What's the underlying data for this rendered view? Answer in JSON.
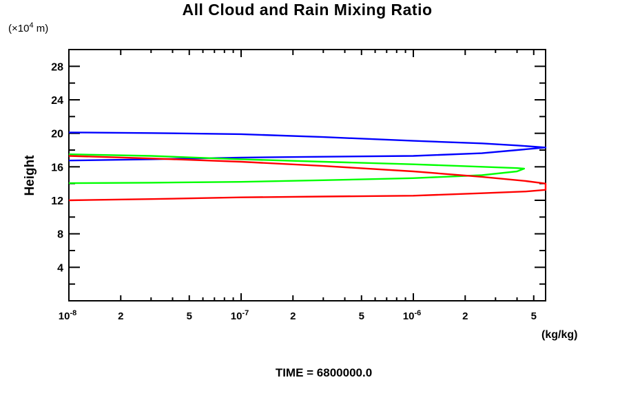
{
  "header": {
    "title": "All Cloud and Rain Mixing Ratio"
  },
  "footer": {
    "time_label": "TIME = 6800000.0"
  },
  "chart_data": {
    "type": "line",
    "title": "All Cloud and Rain Mixing Ratio",
    "xlabel_unit": "(kg/kg)",
    "ylabel": "Height",
    "y_unit_parts": {
      "pre": "(×10",
      "exp": "4",
      "post": " m)"
    },
    "x_scale": "log",
    "xlim": [
      1e-08,
      5.86e-06
    ],
    "ylim": [
      0,
      30
    ],
    "grid": false,
    "legend": "none",
    "y_ticks_major": [
      4,
      8,
      12,
      16,
      20,
      24,
      28
    ],
    "y_ticks_minor": [
      2,
      6,
      10,
      14,
      18,
      22,
      26,
      30
    ],
    "x_ticks": [
      {
        "v": 1e-08,
        "t": "decade",
        "base": "10",
        "exp": "-8"
      },
      {
        "v": 2e-08,
        "t": "num",
        "label": "2"
      },
      {
        "v": 3e-08,
        "t": "minor"
      },
      {
        "v": 4e-08,
        "t": "minor"
      },
      {
        "v": 5e-08,
        "t": "num",
        "label": "5"
      },
      {
        "v": 6e-08,
        "t": "minor"
      },
      {
        "v": 7e-08,
        "t": "minor"
      },
      {
        "v": 8e-08,
        "t": "minor"
      },
      {
        "v": 9e-08,
        "t": "minor"
      },
      {
        "v": 1e-07,
        "t": "decade",
        "base": "10",
        "exp": "-7"
      },
      {
        "v": 2e-07,
        "t": "num",
        "label": "2"
      },
      {
        "v": 3e-07,
        "t": "minor"
      },
      {
        "v": 4e-07,
        "t": "minor"
      },
      {
        "v": 5e-07,
        "t": "num",
        "label": "5"
      },
      {
        "v": 6e-07,
        "t": "minor"
      },
      {
        "v": 7e-07,
        "t": "minor"
      },
      {
        "v": 8e-07,
        "t": "minor"
      },
      {
        "v": 9e-07,
        "t": "minor"
      },
      {
        "v": 1e-06,
        "t": "decade",
        "base": "10",
        "exp": "-6"
      },
      {
        "v": 2e-06,
        "t": "num",
        "label": "2"
      },
      {
        "v": 3e-06,
        "t": "minor"
      },
      {
        "v": 4e-06,
        "t": "minor"
      },
      {
        "v": 5e-06,
        "t": "num",
        "label": "5"
      }
    ],
    "series": [
      {
        "name": "blue-profile",
        "color": "#0000ff",
        "points": [
          [
            1e-08,
            20.1
          ],
          [
            3e-08,
            20.03
          ],
          [
            1e-07,
            19.9
          ],
          [
            3e-07,
            19.55
          ],
          [
            1e-06,
            19.1
          ],
          [
            2.5e-06,
            18.8
          ],
          [
            4e-06,
            18.55
          ],
          [
            5.86e-06,
            18.3
          ],
          [
            4e-06,
            18.0
          ],
          [
            2.5e-06,
            17.62
          ],
          [
            1e-06,
            17.3
          ],
          [
            3e-07,
            17.2
          ],
          [
            1e-07,
            17.1
          ],
          [
            3e-08,
            16.9
          ],
          [
            1e-08,
            16.75
          ]
        ]
      },
      {
        "name": "green-profile",
        "color": "#00ff00",
        "points": [
          [
            1e-08,
            17.5
          ],
          [
            3e-08,
            17.3
          ],
          [
            1e-07,
            16.9
          ],
          [
            3e-07,
            16.6
          ],
          [
            1e-06,
            16.3
          ],
          [
            2.5e-06,
            16.0
          ],
          [
            4e-06,
            15.85
          ],
          [
            4.4e-06,
            15.78
          ],
          [
            4e-06,
            15.45
          ],
          [
            2.5e-06,
            15.0
          ],
          [
            1e-06,
            14.65
          ],
          [
            3e-07,
            14.4
          ],
          [
            1e-07,
            14.2
          ],
          [
            3e-08,
            14.1
          ],
          [
            1e-08,
            14.05
          ]
        ]
      },
      {
        "name": "red-profile",
        "color": "#ff0000",
        "points": [
          [
            1e-08,
            17.3
          ],
          [
            3e-08,
            17.0
          ],
          [
            1e-07,
            16.6
          ],
          [
            3e-07,
            16.1
          ],
          [
            1e-06,
            15.45
          ],
          [
            2.5e-06,
            14.8
          ],
          [
            4.5e-06,
            14.3
          ],
          [
            5.86e-06,
            14.0
          ],
          [
            5.86e-06,
            13.25
          ],
          [
            4.5e-06,
            13.05
          ],
          [
            2.5e-06,
            12.85
          ],
          [
            1e-06,
            12.55
          ],
          [
            3e-07,
            12.45
          ],
          [
            1e-07,
            12.35
          ],
          [
            3e-08,
            12.15
          ],
          [
            1e-08,
            12.0
          ]
        ]
      }
    ]
  }
}
